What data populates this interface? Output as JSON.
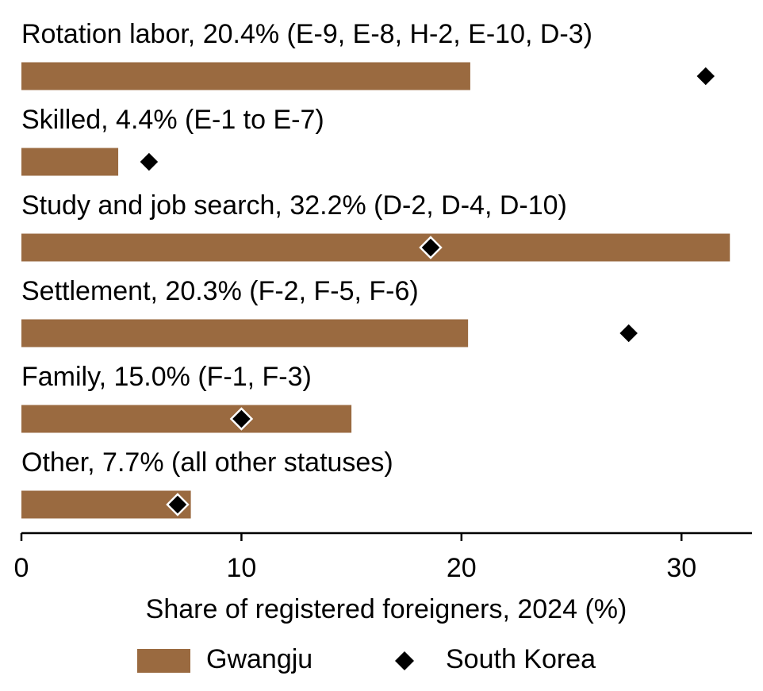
{
  "chart_data": {
    "type": "bar",
    "orientation": "horizontal",
    "categories": [
      "Rotation labor, 20.4% (E-9, E-8, H-2, E-10, D-3)",
      "Skilled, 4.4% (E-1 to E-7)",
      "Study and job search, 32.2% (D-2, D-4, D-10)",
      "Settlement, 20.3% (F-2, F-5, F-6)",
      "Family, 15.0% (F-1, F-3)",
      "Other, 7.7% (all other statuses)"
    ],
    "series": [
      {
        "name": "Gwangju",
        "color": "#9a6a40",
        "marker": "bar",
        "values": [
          20.4,
          4.4,
          32.2,
          20.3,
          15.0,
          7.7
        ]
      },
      {
        "name": "South Korea",
        "color": "#000000",
        "marker": "diamond",
        "values": [
          31.1,
          5.8,
          18.6,
          27.6,
          10.0,
          7.1
        ]
      }
    ],
    "xlabel": "Share of registered foreigners, 2024 (%)",
    "xlim": [
      0,
      33.2
    ],
    "xticks": [
      0,
      10,
      20,
      30
    ],
    "legend": "bottom"
  }
}
